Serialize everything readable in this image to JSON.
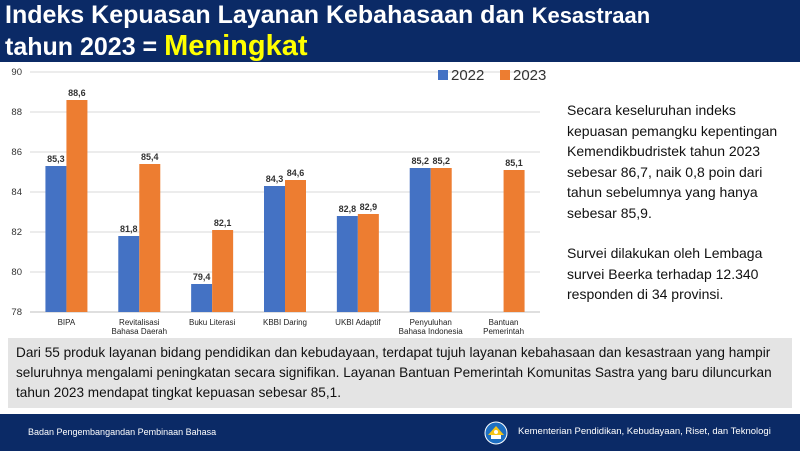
{
  "title": {
    "line1_main": "Indeks Kepuasan Layanan Kebahasaan dan ",
    "line1_tail": "Kesastraan",
    "line2_main": "tahun 2023 = ",
    "line2_highlight": "Meningkat"
  },
  "side_text": {
    "p1": "Secara keseluruhan indeks kepuasan pemangku kepentingan Kemendikbudristek tahun 2023 sebesar 86,7, naik 0,8 poin dari tahun sebelumnya yang hanya sebesar 85,9.",
    "p2": "Survei dilakukan oleh Lembaga survei Beerka terhadap 12.340 responden di 34 provinsi."
  },
  "bottom_text": "Dari 55 produk layanan bidang pendidikan dan kebudayaan, terdapat tujuh layanan kebahasaan dan kesastraan yang hampir seluruhnya mengalami peningkatan secara signifikan. Layanan Bantuan Pemerintah Komunitas Sastra yang baru diluncurkan tahun 2023 mendapat tingkat kepuasan sebesar 85,1.",
  "footer": {
    "left": "Badan Pengembangandan Pembinaan Bahasa",
    "right": "Kementerian Pendidikan, Kebudayaan, Riset, dan Teknologi",
    "logo_icon": "tut-wuri-handayani-logo-icon"
  },
  "chart_data": {
    "type": "bar",
    "categories": [
      [
        "BIPA"
      ],
      [
        "Revitalisasi",
        "Bahasa Daerah"
      ],
      [
        "Buku Literasi"
      ],
      [
        "KBBI Daring"
      ],
      [
        "UKBI Adaptif"
      ],
      [
        "Penyuluhan",
        "Bahasa Indonesia"
      ],
      [
        "Bantuan",
        "Pemerintah"
      ]
    ],
    "series": [
      {
        "name": "2022",
        "color": "#4472c4",
        "values": [
          85.3,
          81.8,
          79.4,
          84.3,
          82.8,
          85.2,
          null
        ],
        "labels": [
          "85,3",
          "81,8",
          "79,4",
          "84,3",
          "82,8",
          "85,2",
          ""
        ]
      },
      {
        "name": "2023",
        "color": "#ed7d31",
        "values": [
          88.6,
          85.4,
          82.1,
          84.6,
          82.9,
          85.2,
          85.1
        ],
        "labels": [
          "88,6",
          "85,4",
          "82,1",
          "84,6",
          "82,9",
          "85,2",
          "85,1"
        ]
      }
    ],
    "ylim": [
      78,
      90
    ],
    "yticks": [
      78,
      80,
      82,
      84,
      86,
      88,
      90
    ],
    "grid": true,
    "legend": "top-right"
  }
}
